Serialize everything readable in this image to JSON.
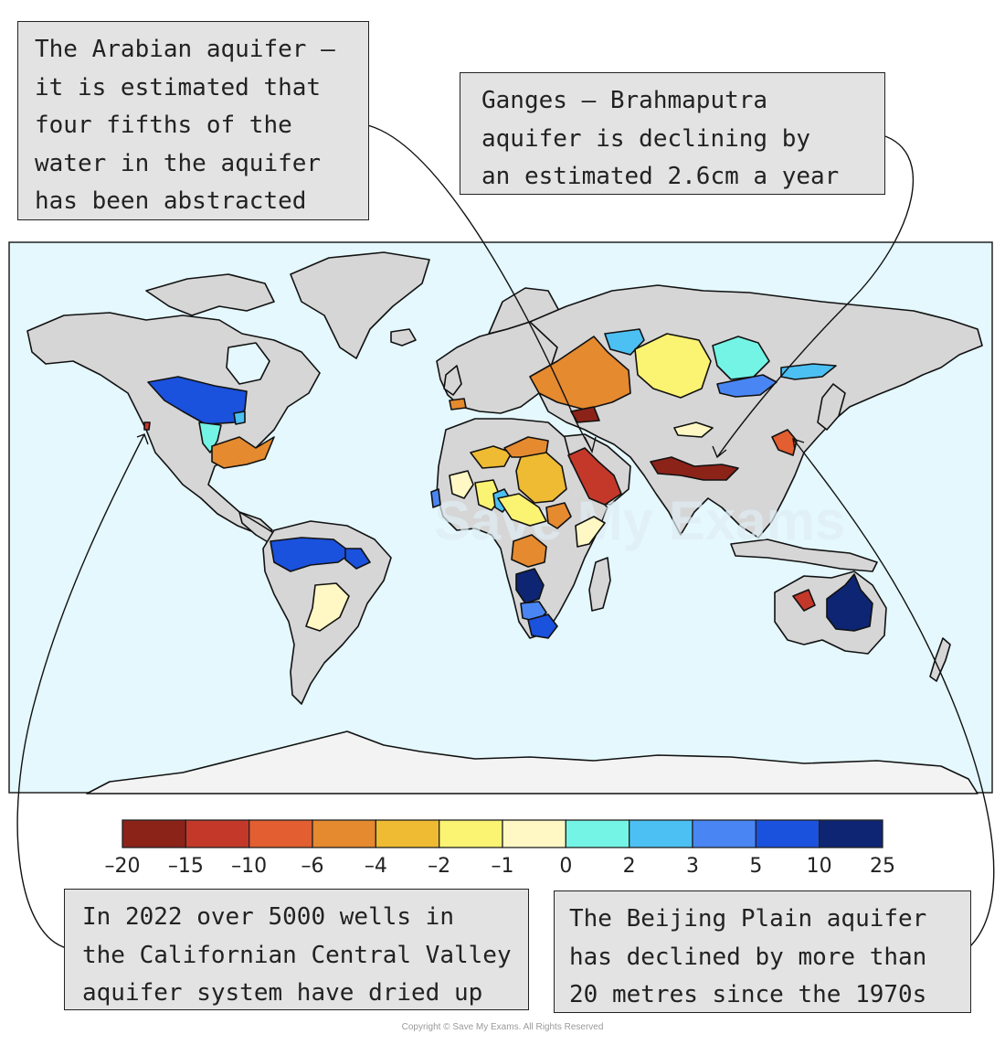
{
  "callouts": {
    "arabian": [
      "The Arabian aquifer –",
      "it is estimated that",
      "four fifths of the",
      "water in the aquifer",
      "has been abstracted"
    ],
    "ganges": [
      "Ganges – Brahmaputra",
      "aquifer is declining by",
      "an estimated 2.6cm a year"
    ],
    "california": [
      "In 2022 over 5000 wells in",
      "the Californian Central Valley",
      "aquifer system have dried up"
    ],
    "beijing": [
      "The Beijing Plain aquifer",
      "has declined by more than",
      "20 metres since the 1970s"
    ]
  },
  "legend": {
    "colors": [
      "#8c2319",
      "#c4382a",
      "#e35e30",
      "#e58a2f",
      "#efbb32",
      "#fbf372",
      "#fff8c4",
      "#74f4e4",
      "#4cc0f3",
      "#4a86f3",
      "#1a51dd",
      "#0e2574"
    ],
    "ticks": [
      "–20",
      "–15",
      "–10",
      "–6",
      "–4",
      "–2",
      "–1",
      "0",
      "2",
      "3",
      "5",
      "10",
      "25"
    ]
  },
  "watermark": "Save My Exams",
  "copyright": "Copyright © Save My Exams. All Rights Reserved"
}
